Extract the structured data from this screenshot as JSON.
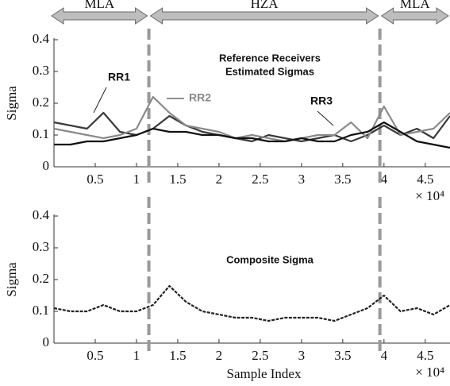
{
  "chart_data": [
    {
      "type": "line",
      "annotation": [
        "Reference Receivers",
        "Estimated Sigmas"
      ],
      "y_label": "Sigma",
      "x_scale_label": "× 10⁴",
      "x": [
        0,
        0.2,
        0.4,
        0.6,
        0.8,
        1,
        1.2,
        1.4,
        1.6,
        1.8,
        2,
        2.2,
        2.4,
        2.6,
        2.8,
        3,
        3.2,
        3.4,
        3.6,
        3.8,
        4,
        4.2,
        4.4,
        4.6,
        4.8
      ],
      "series": [
        {
          "name": "RR1",
          "color": "#3a3a3a",
          "values": [
            0.14,
            0.13,
            0.12,
            0.17,
            0.11,
            0.1,
            0.12,
            0.16,
            0.13,
            0.11,
            0.1,
            0.09,
            0.08,
            0.1,
            0.09,
            0.08,
            0.09,
            0.1,
            0.08,
            0.1,
            0.13,
            0.1,
            0.12,
            0.09,
            0.16
          ]
        },
        {
          "name": "RR2",
          "color": "#8a8a8a",
          "values": [
            0.12,
            0.11,
            0.1,
            0.09,
            0.1,
            0.12,
            0.22,
            0.17,
            0.13,
            0.12,
            0.11,
            0.09,
            0.1,
            0.09,
            0.08,
            0.09,
            0.1,
            0.1,
            0.14,
            0.09,
            0.19,
            0.1,
            0.11,
            0.12,
            0.17
          ]
        },
        {
          "name": "RR3",
          "color": "#111111",
          "values": [
            0.07,
            0.07,
            0.08,
            0.08,
            0.09,
            0.1,
            0.12,
            0.11,
            0.11,
            0.1,
            0.1,
            0.09,
            0.09,
            0.08,
            0.08,
            0.09,
            0.08,
            0.08,
            0.1,
            0.11,
            0.14,
            0.11,
            0.08,
            0.07,
            0.06
          ]
        }
      ],
      "xlim": [
        0,
        4.8
      ],
      "xticks": [
        0.5,
        1,
        1.5,
        2,
        2.5,
        3,
        3.5,
        4,
        4.5
      ],
      "ylim": [
        0,
        0.4
      ],
      "yticks": [
        0,
        0.1,
        0.2,
        0.3,
        0.4
      ],
      "regions": [
        {
          "label": "MLA",
          "from": 0,
          "to": 1.15
        },
        {
          "label": "HZA",
          "from": 1.15,
          "to": 3.95
        },
        {
          "label": "MLA",
          "from": 3.95,
          "to": 4.8
        }
      ],
      "vlines": [
        1.15,
        3.95
      ]
    },
    {
      "type": "line",
      "annotation": [
        "Composite Sigma"
      ],
      "y_label": "Sigma",
      "x_label": "Sample Index",
      "x_scale_label": "× 10⁴",
      "x": [
        0,
        0.2,
        0.4,
        0.6,
        0.8,
        1,
        1.2,
        1.4,
        1.6,
        1.8,
        2,
        2.2,
        2.4,
        2.6,
        2.8,
        3,
        3.2,
        3.4,
        3.6,
        3.8,
        4,
        4.2,
        4.4,
        4.6,
        4.8
      ],
      "color": "#222222",
      "values": [
        0.11,
        0.1,
        0.1,
        0.12,
        0.1,
        0.1,
        0.12,
        0.18,
        0.13,
        0.1,
        0.09,
        0.08,
        0.08,
        0.07,
        0.08,
        0.08,
        0.08,
        0.07,
        0.09,
        0.11,
        0.15,
        0.1,
        0.11,
        0.09,
        0.12
      ],
      "xlim": [
        0,
        4.8
      ],
      "xticks": [
        0.5,
        1,
        1.5,
        2,
        2.5,
        3,
        3.5,
        4,
        4.5
      ],
      "ylim": [
        0,
        0.4
      ],
      "yticks": [
        0,
        0.1,
        0.2,
        0.3,
        0.4
      ],
      "vlines": [
        1.15,
        3.95
      ]
    }
  ]
}
